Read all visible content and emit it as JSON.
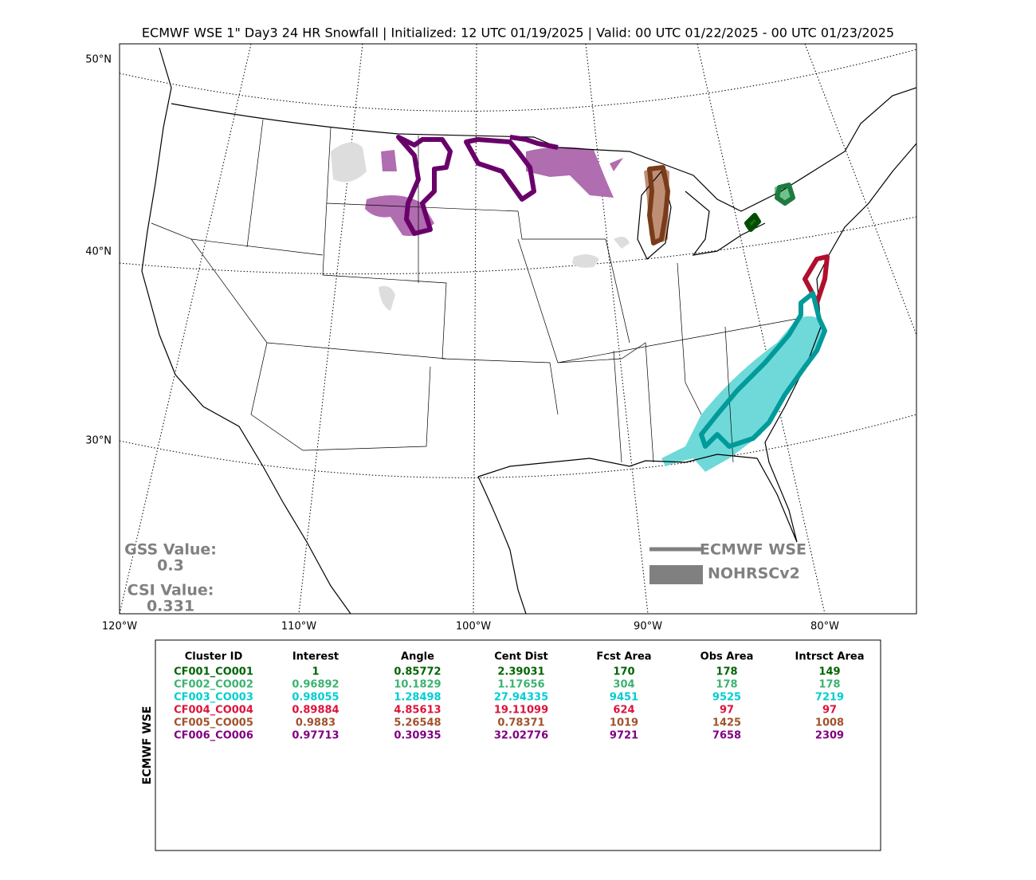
{
  "title": "ECMWF WSE 1\" Day3 24 HR Snowfall | Initialized: 12 UTC 01/19/2025 | Valid: 00 UTC 01/22/2025 - 00 UTC 01/23/2025",
  "map": {
    "lat_labels": [
      "50°N",
      "40°N",
      "30°N"
    ],
    "lon_labels": [
      "120°W",
      "110°W",
      "100°W",
      "90°W",
      "80°W"
    ],
    "legend": [
      {
        "label": "ECMWF WSE",
        "color": "#808080"
      },
      {
        "label": "NOHRSCv2",
        "color": "#808080"
      }
    ],
    "scores": [
      {
        "label": "GSS Value:",
        "value": "0.3"
      },
      {
        "label": "CSI Value:",
        "value": "0.331"
      }
    ]
  },
  "table": {
    "side_label": "ECMWF WSE",
    "columns": [
      "Cluster ID",
      "Interest",
      "Angle",
      "Cent Dist",
      "Fcst Area",
      "Obs Area",
      "Intrsct Area"
    ],
    "rows": [
      {
        "color": "#006400",
        "cells": [
          "CF001_CO001",
          "1",
          "0.85772",
          "2.39031",
          "170",
          "178",
          "149"
        ]
      },
      {
        "color": "#3cb371",
        "cells": [
          "CF002_CO002",
          "0.96892",
          "10.1829",
          "1.17656",
          "304",
          "178",
          "178"
        ]
      },
      {
        "color": "#00ced1",
        "cells": [
          "CF003_CO003",
          "0.98055",
          "1.28498",
          "27.94335",
          "9451",
          "9525",
          "7219"
        ]
      },
      {
        "color": "#dc143c",
        "cells": [
          "CF004_CO004",
          "0.89884",
          "4.85613",
          "19.11099",
          "624",
          "97",
          "97"
        ]
      },
      {
        "color": "#a0522d",
        "cells": [
          "CF005_CO005",
          "0.9883",
          "5.26548",
          "0.78371",
          "1019",
          "1425",
          "1008"
        ]
      },
      {
        "color": "#800080",
        "cells": [
          "CF006_CO006",
          "0.97713",
          "0.30935",
          "32.02776",
          "9721",
          "7658",
          "2309"
        ]
      }
    ]
  }
}
